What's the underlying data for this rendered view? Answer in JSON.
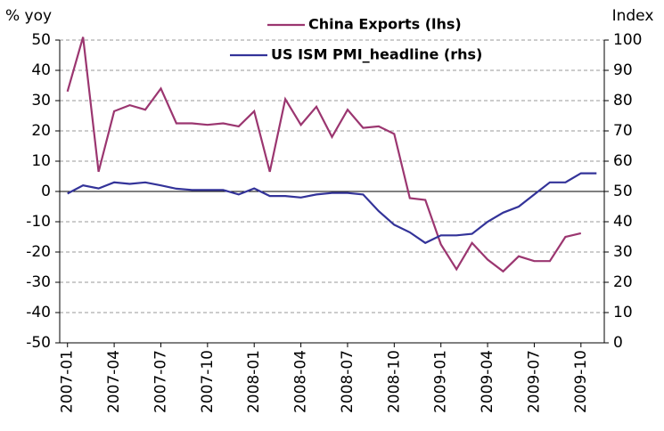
{
  "chart_data": {
    "type": "line",
    "y_label": "% yoy",
    "y2_label": "Index",
    "categories": [
      "2007-01",
      null,
      null,
      "2007-04",
      null,
      null,
      "2007-07",
      null,
      null,
      "2007-10",
      null,
      null,
      "2008-01",
      null,
      null,
      "2008-04",
      null,
      null,
      "2008-07",
      null,
      null,
      "2008-10",
      null,
      null,
      "2009-01",
      null,
      null,
      "2009-04",
      null,
      null,
      "2009-07",
      null,
      null,
      "2009-10",
      null
    ],
    "series": [
      {
        "name": "China Exports (lhs)",
        "color": "#9b3670",
        "values": [
          33,
          51,
          6.5,
          26.5,
          28.5,
          27,
          34,
          22.5,
          22.5,
          22,
          22.5,
          21.5,
          26.5,
          6.5,
          30.5,
          22,
          28,
          18,
          27,
          21,
          21.5,
          19,
          -2.2,
          -2.8,
          -17.5,
          -25.7,
          -17,
          -22.5,
          -26.4,
          -21.4,
          -23,
          -23,
          -15,
          -13.8,
          null
        ]
      },
      {
        "name": "US ISM PMI_headline (rhs)",
        "color": "#333399",
        "axis": "y2",
        "values": [
          49.3,
          52,
          51,
          53,
          52.5,
          53,
          52,
          50.9,
          50.5,
          50.5,
          50.5,
          49,
          51,
          48.5,
          48.5,
          48,
          49,
          49.5,
          49.5,
          49,
          43.5,
          39,
          36.5,
          33,
          35.5,
          35.5,
          36,
          40,
          43,
          45,
          49,
          53,
          53,
          56,
          56
        ]
      }
    ],
    "ylim": [
      -50,
      50
    ],
    "yticks": [
      -50,
      -40,
      -30,
      -20,
      -10,
      0,
      10,
      20,
      30,
      40,
      50
    ],
    "y2lim": [
      0,
      100
    ],
    "y2ticks": [
      0,
      10,
      20,
      30,
      40,
      50,
      60,
      70,
      80,
      90,
      100
    ],
    "grid": true
  }
}
